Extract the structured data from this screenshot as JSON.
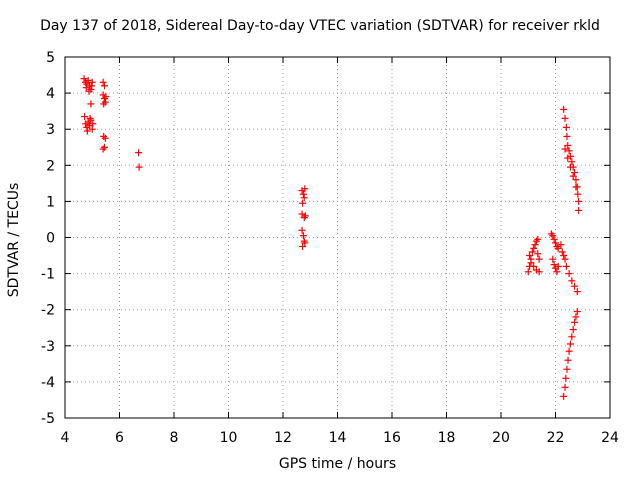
{
  "chart_data": {
    "type": "scatter",
    "title": "Day 137 of 2018, Sidereal Day-to-day VTEC variation (SDTVAR) for receiver rkld",
    "xlabel": "GPS time / hours",
    "ylabel": "SDTVAR / TECUs",
    "xlim": [
      4,
      24
    ],
    "ylim": [
      -5,
      5
    ],
    "xticks": [
      "4",
      "6",
      "8",
      "10",
      "12",
      "14",
      "16",
      "18",
      "20",
      "22",
      "24"
    ],
    "yticks": [
      "-5",
      "-4",
      "-3",
      "-2",
      "-1",
      "0",
      "1",
      "2",
      "3",
      "4",
      "5"
    ],
    "grid": true,
    "marker": "+",
    "color": "#ff0000",
    "series": [
      {
        "name": "SDTVAR",
        "points": [
          [
            4.7,
            4.4
          ],
          [
            4.75,
            4.3
          ],
          [
            4.8,
            4.25
          ],
          [
            4.85,
            4.35
          ],
          [
            4.9,
            4.2
          ],
          [
            4.95,
            4.1
          ],
          [
            5.0,
            4.3
          ],
          [
            4.78,
            4.15
          ],
          [
            4.88,
            4.05
          ],
          [
            4.98,
            4.2
          ],
          [
            4.72,
            3.35
          ],
          [
            4.76,
            3.15
          ],
          [
            4.8,
            3.05
          ],
          [
            4.85,
            3.2
          ],
          [
            4.9,
            3.1
          ],
          [
            4.95,
            3.25
          ],
          [
            5.0,
            3.0
          ],
          [
            5.02,
            3.15
          ],
          [
            4.82,
            2.95
          ],
          [
            4.92,
            3.3
          ],
          [
            4.95,
            3.7
          ],
          [
            5.4,
            4.3
          ],
          [
            5.45,
            4.2
          ],
          [
            5.4,
            3.95
          ],
          [
            5.45,
            3.85
          ],
          [
            5.48,
            3.75
          ],
          [
            5.5,
            3.9
          ],
          [
            5.42,
            3.7
          ],
          [
            5.42,
            2.8
          ],
          [
            5.48,
            2.75
          ],
          [
            5.4,
            2.45
          ],
          [
            5.45,
            2.5
          ],
          [
            6.7,
            2.35
          ],
          [
            6.72,
            1.95
          ],
          [
            12.7,
            1.3
          ],
          [
            12.75,
            1.2
          ],
          [
            12.78,
            1.1
          ],
          [
            12.72,
            0.95
          ],
          [
            12.8,
            1.35
          ],
          [
            12.7,
            0.65
          ],
          [
            12.78,
            0.55
          ],
          [
            12.82,
            0.6
          ],
          [
            12.7,
            0.2
          ],
          [
            12.75,
            0.05
          ],
          [
            12.78,
            -0.1
          ],
          [
            12.72,
            -0.25
          ],
          [
            12.8,
            -0.15
          ],
          [
            21.0,
            -0.95
          ],
          [
            21.05,
            -0.8
          ],
          [
            21.1,
            -0.6
          ],
          [
            21.15,
            -0.4
          ],
          [
            21.2,
            -0.3
          ],
          [
            21.25,
            -0.2
          ],
          [
            21.3,
            -0.1
          ],
          [
            21.35,
            -0.05
          ],
          [
            21.05,
            -0.5
          ],
          [
            21.1,
            -0.7
          ],
          [
            21.2,
            -0.8
          ],
          [
            21.3,
            -0.9
          ],
          [
            21.4,
            -0.95
          ],
          [
            21.4,
            -0.6
          ],
          [
            21.35,
            -0.45
          ],
          [
            21.85,
            0.1
          ],
          [
            21.9,
            0.05
          ],
          [
            21.95,
            -0.05
          ],
          [
            22.0,
            -0.15
          ],
          [
            22.05,
            -0.25
          ],
          [
            22.1,
            -0.3
          ],
          [
            21.9,
            -0.6
          ],
          [
            21.95,
            -0.75
          ],
          [
            22.0,
            -0.85
          ],
          [
            22.05,
            -0.95
          ],
          [
            22.1,
            -0.8
          ],
          [
            22.2,
            -0.2
          ],
          [
            22.25,
            -0.4
          ],
          [
            22.3,
            -0.5
          ],
          [
            22.35,
            -0.6
          ],
          [
            22.4,
            -0.8
          ],
          [
            22.5,
            -1.0
          ],
          [
            22.6,
            -1.2
          ],
          [
            22.7,
            -1.35
          ],
          [
            22.8,
            -1.5
          ],
          [
            22.3,
            3.55
          ],
          [
            22.35,
            3.3
          ],
          [
            22.4,
            3.05
          ],
          [
            22.42,
            2.8
          ],
          [
            22.45,
            2.55
          ],
          [
            22.5,
            2.4
          ],
          [
            22.55,
            2.25
          ],
          [
            22.6,
            2.1
          ],
          [
            22.65,
            1.95
          ],
          [
            22.7,
            1.8
          ],
          [
            22.75,
            1.6
          ],
          [
            22.8,
            1.4
          ],
          [
            22.82,
            1.2
          ],
          [
            22.85,
            1.0
          ],
          [
            22.85,
            0.75
          ],
          [
            22.35,
            2.45
          ],
          [
            22.45,
            2.2
          ],
          [
            22.55,
            1.95
          ],
          [
            22.65,
            1.7
          ],
          [
            22.75,
            1.4
          ],
          [
            22.3,
            -4.4
          ],
          [
            22.35,
            -4.15
          ],
          [
            22.38,
            -3.9
          ],
          [
            22.42,
            -3.65
          ],
          [
            22.46,
            -3.4
          ],
          [
            22.5,
            -3.15
          ],
          [
            22.55,
            -2.95
          ],
          [
            22.6,
            -2.75
          ],
          [
            22.65,
            -2.55
          ],
          [
            22.7,
            -2.35
          ],
          [
            22.75,
            -2.2
          ],
          [
            22.8,
            -2.05
          ]
        ]
      }
    ]
  }
}
